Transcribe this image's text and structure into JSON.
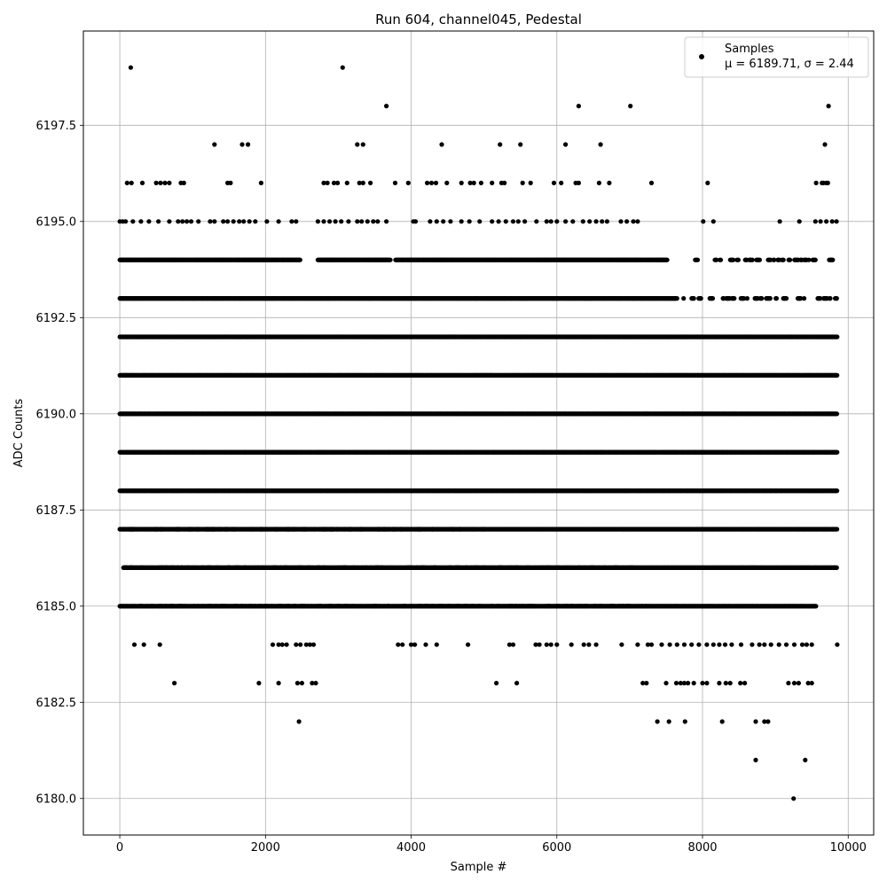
{
  "chart_data": {
    "type": "scatter",
    "title": "Run 604, channel045, Pedestal",
    "xlabel": "Sample #",
    "ylabel": "ADC Counts",
    "xlim": [
      -500,
      10350
    ],
    "ylim": [
      6179.05,
      6199.95
    ],
    "xticks": [
      0,
      2000,
      4000,
      6000,
      8000,
      10000
    ],
    "xtick_labels": [
      "0",
      "2000",
      "4000",
      "6000",
      "8000",
      "10000"
    ],
    "yticks": [
      6180.0,
      6182.5,
      6185.0,
      6187.5,
      6190.0,
      6192.5,
      6195.0,
      6197.5
    ],
    "ytick_labels": [
      "6180.0",
      "6182.5",
      "6185.0",
      "6187.5",
      "6190.0",
      "6192.5",
      "6195.0",
      "6197.5"
    ],
    "grid": true,
    "legend_position": "top-right",
    "marker_color": "#000000",
    "series": [
      {
        "name": "Samples",
        "stats_label": "μ = 6189.71, σ = 2.44",
        "points": [
          [
            150,
            6199
          ],
          [
            3060,
            6199
          ],
          [
            3660,
            6198
          ],
          [
            6300,
            6198
          ],
          [
            7010,
            6198
          ],
          [
            9730,
            6198
          ],
          [
            1300,
            6197
          ],
          [
            1680,
            6197
          ],
          [
            1760,
            6197
          ],
          [
            3260,
            6197
          ],
          [
            3340,
            6197
          ],
          [
            4420,
            6197
          ],
          [
            5220,
            6197
          ],
          [
            5500,
            6197
          ],
          [
            6120,
            6197
          ],
          [
            6600,
            6197
          ],
          [
            9680,
            6197
          ],
          [
            100,
            6196
          ],
          [
            160,
            6196
          ],
          [
            310,
            6196
          ],
          [
            500,
            6196
          ],
          [
            560,
            6196
          ],
          [
            620,
            6196
          ],
          [
            680,
            6196
          ],
          [
            840,
            6196
          ],
          [
            880,
            6196
          ],
          [
            1480,
            6196
          ],
          [
            1520,
            6196
          ],
          [
            1940,
            6196
          ],
          [
            2800,
            6196
          ],
          [
            2850,
            6196
          ],
          [
            2940,
            6196
          ],
          [
            2990,
            6196
          ],
          [
            3120,
            6196
          ],
          [
            3290,
            6196
          ],
          [
            3340,
            6196
          ],
          [
            3440,
            6196
          ],
          [
            3780,
            6196
          ],
          [
            3960,
            6196
          ],
          [
            4220,
            6196
          ],
          [
            4280,
            6196
          ],
          [
            4340,
            6196
          ],
          [
            4490,
            6196
          ],
          [
            4690,
            6196
          ],
          [
            4810,
            6196
          ],
          [
            4860,
            6196
          ],
          [
            4960,
            6196
          ],
          [
            5110,
            6196
          ],
          [
            5240,
            6196
          ],
          [
            5280,
            6196
          ],
          [
            5530,
            6196
          ],
          [
            5640,
            6196
          ],
          [
            5960,
            6196
          ],
          [
            6060,
            6196
          ],
          [
            6260,
            6196
          ],
          [
            6300,
            6196
          ],
          [
            6580,
            6196
          ],
          [
            6720,
            6196
          ],
          [
            7300,
            6196
          ],
          [
            8070,
            6196
          ],
          [
            9560,
            6196
          ],
          [
            9660,
            6196
          ],
          [
            9720,
            6196
          ],
          [
            8730,
            6181
          ],
          [
            9410,
            6181
          ],
          [
            9250,
            6180
          ],
          [
            2460,
            6182
          ],
          [
            7380,
            6182
          ],
          [
            7540,
            6182
          ],
          [
            7760,
            6182
          ],
          [
            8270,
            6182
          ],
          [
            8730,
            6182
          ],
          [
            8850,
            6182
          ],
          [
            8900,
            6182
          ],
          [
            750,
            6183
          ],
          [
            1910,
            6183
          ],
          [
            2180,
            6183
          ],
          [
            2440,
            6183
          ],
          [
            2500,
            6183
          ],
          [
            2640,
            6183
          ],
          [
            2690,
            6183
          ],
          [
            5170,
            6183
          ],
          [
            5450,
            6183
          ],
          [
            7180,
            6183
          ],
          [
            7230,
            6183
          ],
          [
            7500,
            6183
          ],
          [
            7640,
            6183
          ],
          [
            7700,
            6183
          ],
          [
            7750,
            6183
          ],
          [
            7800,
            6183
          ],
          [
            7880,
            6183
          ],
          [
            8000,
            6183
          ],
          [
            8060,
            6183
          ],
          [
            8230,
            6183
          ],
          [
            8320,
            6183
          ],
          [
            8380,
            6183
          ],
          [
            8520,
            6183
          ],
          [
            8580,
            6183
          ],
          [
            9180,
            6183
          ],
          [
            9260,
            6183
          ],
          [
            9320,
            6183
          ],
          [
            9450,
            6183
          ],
          [
            9500,
            6183
          ],
          [
            200,
            6184
          ],
          [
            330,
            6184
          ],
          [
            550,
            6184
          ],
          [
            2100,
            6184
          ],
          [
            2180,
            6184
          ],
          [
            2230,
            6184
          ],
          [
            2290,
            6184
          ],
          [
            2420,
            6184
          ],
          [
            2480,
            6184
          ],
          [
            2560,
            6184
          ],
          [
            2610,
            6184
          ],
          [
            2660,
            6184
          ],
          [
            3820,
            6184
          ],
          [
            3880,
            6184
          ],
          [
            4000,
            6184
          ],
          [
            4050,
            6184
          ],
          [
            4200,
            6184
          ],
          [
            4350,
            6184
          ],
          [
            4780,
            6184
          ],
          [
            5350,
            6184
          ],
          [
            5400,
            6184
          ],
          [
            5710,
            6184
          ],
          [
            5760,
            6184
          ],
          [
            5860,
            6184
          ],
          [
            5920,
            6184
          ],
          [
            6000,
            6184
          ],
          [
            6200,
            6184
          ],
          [
            6370,
            6184
          ],
          [
            6440,
            6184
          ],
          [
            6540,
            6184
          ],
          [
            6890,
            6184
          ],
          [
            7110,
            6184
          ],
          [
            7250,
            6184
          ],
          [
            7300,
            6184
          ],
          [
            7440,
            6184
          ],
          [
            7550,
            6184
          ],
          [
            7650,
            6184
          ],
          [
            7750,
            6184
          ],
          [
            7850,
            6184
          ],
          [
            7950,
            6184
          ],
          [
            8060,
            6184
          ],
          [
            8150,
            6184
          ],
          [
            8230,
            6184
          ],
          [
            8310,
            6184
          ],
          [
            8400,
            6184
          ],
          [
            8530,
            6184
          ],
          [
            8680,
            6184
          ],
          [
            8780,
            6184
          ],
          [
            8850,
            6184
          ],
          [
            8940,
            6184
          ],
          [
            9050,
            6184
          ],
          [
            9150,
            6184
          ],
          [
            9260,
            6184
          ],
          [
            9370,
            6184
          ],
          [
            9430,
            6184
          ],
          [
            9500,
            6184
          ],
          [
            9850,
            6184
          ],
          [
            0,
            6195
          ],
          [
            40,
            6195
          ],
          [
            80,
            6195
          ],
          [
            180,
            6195
          ],
          [
            290,
            6195
          ],
          [
            400,
            6195
          ],
          [
            530,
            6195
          ],
          [
            680,
            6195
          ],
          [
            800,
            6195
          ],
          [
            860,
            6195
          ],
          [
            920,
            6195
          ],
          [
            980,
            6195
          ],
          [
            1080,
            6195
          ],
          [
            1240,
            6195
          ],
          [
            1300,
            6195
          ],
          [
            1420,
            6195
          ],
          [
            1480,
            6195
          ],
          [
            1560,
            6195
          ],
          [
            1640,
            6195
          ],
          [
            1700,
            6195
          ],
          [
            1780,
            6195
          ],
          [
            1860,
            6195
          ],
          [
            2020,
            6195
          ],
          [
            2180,
            6195
          ],
          [
            2360,
            6195
          ],
          [
            2420,
            6195
          ],
          [
            2720,
            6195
          ],
          [
            2800,
            6195
          ],
          [
            2880,
            6195
          ],
          [
            2960,
            6195
          ],
          [
            3040,
            6195
          ],
          [
            3140,
            6195
          ],
          [
            3260,
            6195
          ],
          [
            3320,
            6195
          ],
          [
            3400,
            6195
          ],
          [
            3480,
            6195
          ],
          [
            3540,
            6195
          ],
          [
            3660,
            6195
          ],
          [
            4030,
            6195
          ],
          [
            4060,
            6195
          ],
          [
            4260,
            6195
          ],
          [
            4350,
            6195
          ],
          [
            4440,
            6195
          ],
          [
            4540,
            6195
          ],
          [
            4690,
            6195
          ],
          [
            4800,
            6195
          ],
          [
            4940,
            6195
          ],
          [
            5110,
            6195
          ],
          [
            5200,
            6195
          ],
          [
            5300,
            6195
          ],
          [
            5400,
            6195
          ],
          [
            5470,
            6195
          ],
          [
            5560,
            6195
          ],
          [
            5720,
            6195
          ],
          [
            5860,
            6195
          ],
          [
            5920,
            6195
          ],
          [
            6000,
            6195
          ],
          [
            6120,
            6195
          ],
          [
            6220,
            6195
          ],
          [
            6360,
            6195
          ],
          [
            6450,
            6195
          ],
          [
            6540,
            6195
          ],
          [
            6620,
            6195
          ],
          [
            6690,
            6195
          ],
          [
            6880,
            6195
          ],
          [
            6960,
            6195
          ],
          [
            7050,
            6195
          ],
          [
            7110,
            6195
          ],
          [
            8010,
            6195
          ],
          [
            8150,
            6195
          ],
          [
            9060,
            6195
          ],
          [
            9330,
            6195
          ],
          [
            9550,
            6195
          ],
          [
            9620,
            6195
          ],
          [
            9700,
            6195
          ],
          [
            9780,
            6195
          ],
          [
            9840,
            6195
          ],
          [
            9640,
            6196
          ],
          [
            9700,
            6196
          ]
        ],
        "dense_bands": [
          {
            "y": 6194,
            "x_range": [
              0,
              7520
            ],
            "gaps": [
              [
                2480,
                2720
              ],
              [
                3720,
                3780
              ]
            ]
          },
          {
            "y": 6193,
            "x_range": [
              0,
              7650
            ],
            "gaps": []
          },
          {
            "y": 6192,
            "x_range": [
              0,
              9850
            ],
            "gaps": []
          },
          {
            "y": 6191,
            "x_range": [
              0,
              9850
            ],
            "gaps": []
          },
          {
            "y": 6190,
            "x_range": [
              0,
              9850
            ],
            "gaps": []
          },
          {
            "y": 6189,
            "x_range": [
              0,
              9850
            ],
            "gaps": []
          },
          {
            "y": 6188,
            "x_range": [
              0,
              9850
            ],
            "gaps": []
          },
          {
            "y": 6187,
            "x_range": [
              0,
              9850
            ],
            "gaps": []
          },
          {
            "y": 6186,
            "x_range": [
              60,
              9850
            ],
            "gaps": []
          },
          {
            "y": 6185,
            "x_range": [
              0,
              9560
            ],
            "gaps": []
          }
        ],
        "sparse_bands": [
          {
            "y": 6194,
            "x_range": [
              7900,
              9850
            ]
          },
          {
            "y": 6193,
            "x_range": [
              7650,
              9850
            ]
          },
          {
            "y": 6185,
            "x_range": [
              0,
              7350
            ]
          },
          {
            "y": 6186,
            "x_range": [
              0,
              7100
            ]
          },
          {
            "y": 6187,
            "x_range": [
              0,
              5000
            ]
          }
        ]
      }
    ]
  }
}
